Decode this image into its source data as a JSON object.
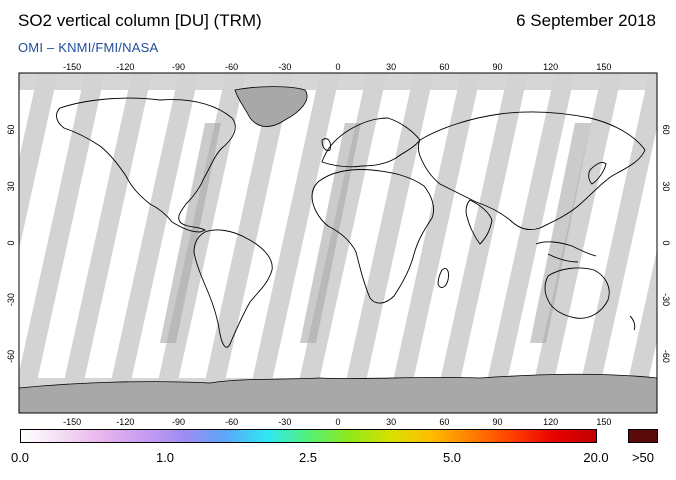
{
  "header": {
    "title": "SO2 vertical column [DU] (TRM)",
    "date": "6 September 2018",
    "credit": "OMI  –  KNMI/FMI/NASA"
  },
  "map": {
    "lon_ticks": [
      "-150",
      "-120",
      "-90",
      "-60",
      "-30",
      "0",
      "30",
      "60",
      "90",
      "120",
      "150"
    ],
    "lat_ticks": [
      "60",
      "30",
      "0",
      "-30",
      "-60"
    ],
    "colors": {
      "swath": "#ffffff",
      "gap": "#d3d3d3",
      "data_gap_dark": "#a9a9a9",
      "coast": "#000000"
    }
  },
  "colorbar": {
    "labels": [
      "0.0",
      "1.0",
      "2.5",
      "5.0",
      "20.0"
    ],
    "overflow_label": ">50",
    "overflow_color": "#5a0a0a",
    "gradient_stops": [
      "#ffffff",
      "#f4dcf4",
      "#e8b4ec",
      "#c89cf0",
      "#9c8cf4",
      "#5aa8f8",
      "#2ee8f4",
      "#52f078",
      "#90e81c",
      "#d8e000",
      "#ffbc00",
      "#ff7c00",
      "#ff3c00",
      "#e80000",
      "#c00000"
    ]
  }
}
